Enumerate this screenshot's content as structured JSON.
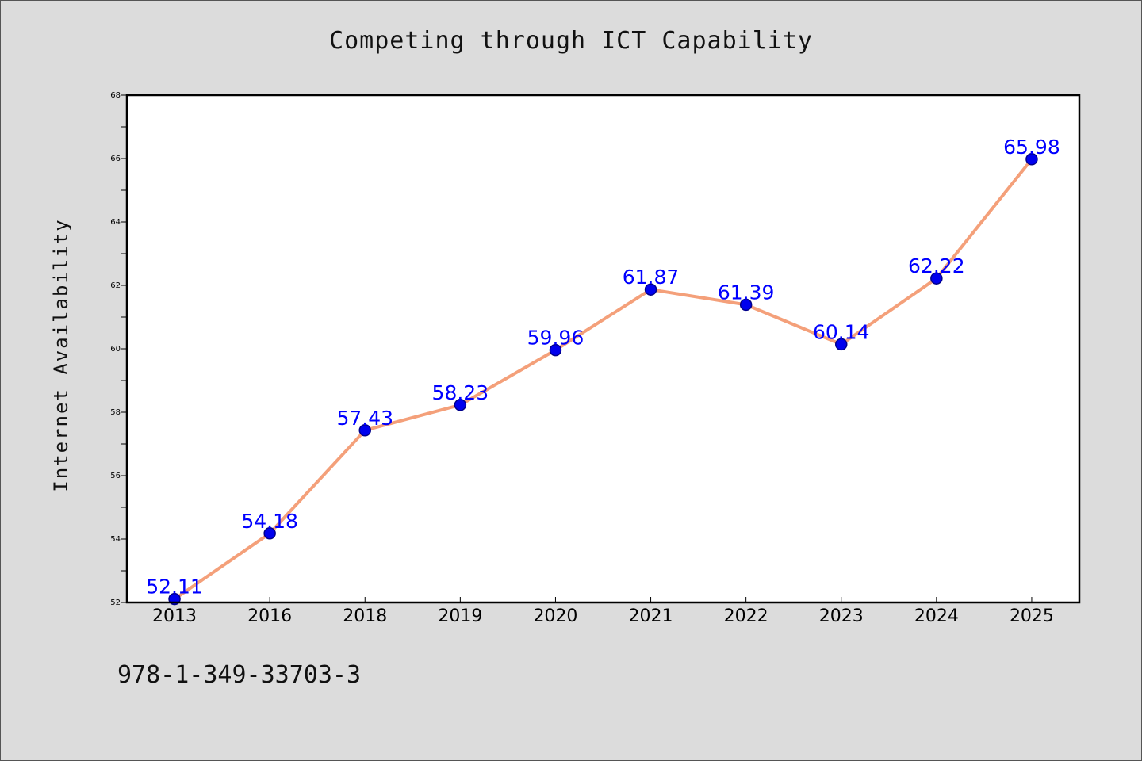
{
  "chart_data": {
    "type": "line",
    "title": "Competing through ICT Capability",
    "xlabel": "",
    "ylabel": "Internet Availability",
    "categories": [
      "2013",
      "2016",
      "2018",
      "2019",
      "2020",
      "2021",
      "2022",
      "2023",
      "2024",
      "2025"
    ],
    "values": [
      52.11,
      54.18,
      57.43,
      58.23,
      59.96,
      61.87,
      61.39,
      60.14,
      62.22,
      65.98
    ],
    "data_labels": [
      "52.11",
      "54.18",
      "57.43",
      "58.23",
      "59.96",
      "61.87",
      "61.39",
      "60.14",
      "62.22",
      "65.98"
    ],
    "ylim": [
      52,
      68
    ],
    "yticks": [
      52,
      54,
      56,
      58,
      60,
      62,
      64,
      66,
      68
    ],
    "grid": false,
    "legend": "none",
    "colors": {
      "line": "#f4a07a",
      "marker": "#0000ee",
      "marker_edge": "#00008b",
      "data_label": "#0000ff",
      "axes": "#000000",
      "plot_background": "#ffffff",
      "figure_background": "#dcdcdc"
    }
  },
  "footer": {
    "isbn": "978-1-349-33703-3"
  }
}
